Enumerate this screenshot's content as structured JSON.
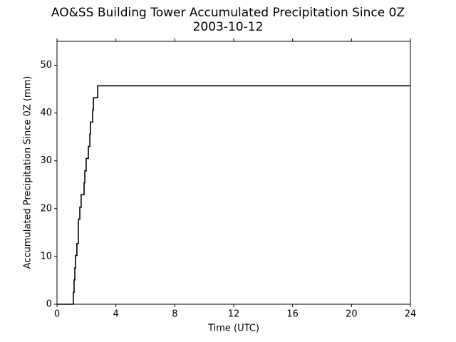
{
  "chart_data": {
    "type": "line",
    "title": "AO&SS Building Tower Accumulated Precipitation Since 0Z",
    "subtitle": "2003-10-12",
    "x_label": "Time (UTC)",
    "y_label": "Accumulated Precipitation Since 0Z (mm)",
    "series": [
      {
        "color": "#000000",
        "x": [
          0,
          1.11,
          1.11,
          1.16,
          1.16,
          1.21,
          1.21,
          1.26,
          1.26,
          1.35,
          1.35,
          1.45,
          1.45,
          1.55,
          1.55,
          1.64,
          1.64,
          1.84,
          1.84,
          1.89,
          1.89,
          1.98,
          1.98,
          2.13,
          2.13,
          2.23,
          2.23,
          2.27,
          2.27,
          2.42,
          2.42,
          2.47,
          2.47,
          2.76,
          2.76,
          24
        ],
        "values": [
          0,
          0,
          2.5,
          2.5,
          5.1,
          5.1,
          7.6,
          7.6,
          10.2,
          10.2,
          12.7,
          12.7,
          17.8,
          17.8,
          20.3,
          20.3,
          22.9,
          22.9,
          25.4,
          25.4,
          27.9,
          27.9,
          30.5,
          30.5,
          33,
          33,
          35.6,
          35.6,
          38.1,
          38.1,
          40.6,
          40.6,
          43.2,
          43.2,
          45.7,
          45.7
        ]
      }
    ],
    "xlim": [
      0,
      24
    ],
    "xticks": [
      0,
      4,
      8,
      12,
      16,
      20,
      24
    ],
    "ylim": [
      0,
      55
    ],
    "yticks": [
      0,
      10,
      20,
      30,
      40,
      50
    ],
    "grid": false
  }
}
